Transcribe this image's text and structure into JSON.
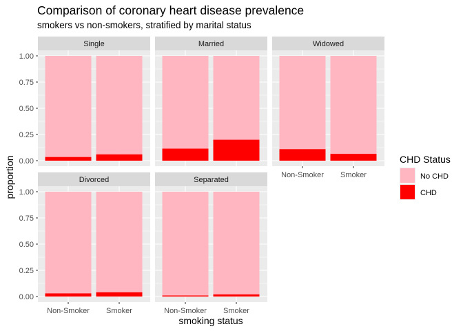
{
  "chart_data": {
    "type": "bar",
    "stacked": true,
    "title": "Comparison of coronary heart disease prevalence",
    "subtitle": "smokers vs non-smokers, stratified by marital status",
    "xlabel": "smoking status",
    "ylabel": "proportion",
    "ylim": [
      0,
      1
    ],
    "yticks": [
      "0.00",
      "0.25",
      "0.50",
      "0.75",
      "1.00"
    ],
    "categories": [
      "Non-Smoker",
      "Smoker"
    ],
    "legend": {
      "title": "CHD Status",
      "placement": "right",
      "entries": [
        {
          "name": "No CHD",
          "color": "#ffb6c1"
        },
        {
          "name": "CHD",
          "color": "#ff0000"
        }
      ]
    },
    "panels": [
      {
        "label": "Single",
        "chd": [
          0.035,
          0.06
        ]
      },
      {
        "label": "Married",
        "chd": [
          0.115,
          0.2
        ]
      },
      {
        "label": "Widowed",
        "chd": [
          0.11,
          0.065
        ]
      },
      {
        "label": "Divorced",
        "chd": [
          0.03,
          0.04
        ]
      },
      {
        "label": "Separated",
        "chd": [
          0.01,
          0.02
        ]
      }
    ],
    "grid": true,
    "panel_background": "#ebebeb",
    "strip_background": "#d9d9d9"
  }
}
